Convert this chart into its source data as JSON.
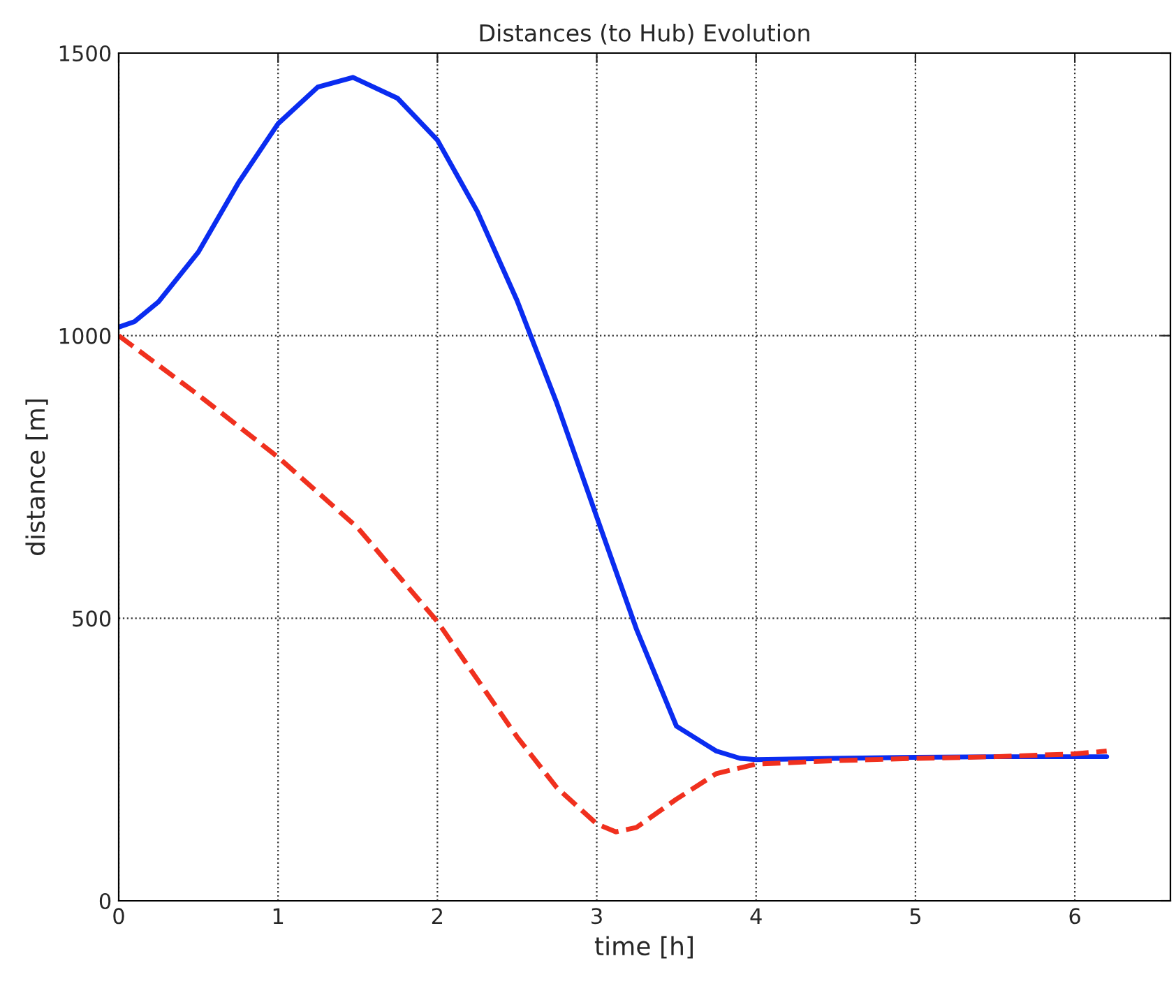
{
  "chart_data": {
    "type": "line",
    "title": "Distances (to Hub) Evolution",
    "xlabel": "time [h]",
    "ylabel": "distance [m]",
    "xlim": [
      0,
      6.6
    ],
    "ylim": [
      0,
      1500
    ],
    "xticks": [
      0,
      1,
      2,
      3,
      4,
      5,
      6
    ],
    "yticks": [
      0,
      500,
      1000,
      1500
    ],
    "grid": true,
    "legend": false,
    "marker": "none",
    "series": [
      {
        "color": "#0a2cf0",
        "line_style": "solid",
        "x": [
          0,
          0.1,
          0.25,
          0.5,
          0.75,
          1,
          1.25,
          1.47,
          1.75,
          2,
          2.25,
          2.5,
          2.75,
          3,
          3.25,
          3.5,
          3.75,
          3.9,
          4,
          4.5,
          5,
          5.5,
          6,
          6.2
        ],
        "values": [
          1015,
          1025,
          1060,
          1148,
          1270,
          1375,
          1440,
          1457,
          1420,
          1346,
          1220,
          1062,
          880,
          679,
          480,
          309,
          265,
          252,
          250,
          252,
          254,
          255,
          255,
          255
        ]
      },
      {
        "color": "#f0301e",
        "line_style": "dashed",
        "x": [
          0,
          0.5,
          1,
          1.5,
          2,
          2.5,
          2.75,
          3,
          3.12,
          3.25,
          3.5,
          3.75,
          4,
          4.5,
          5,
          5.5,
          6,
          6.2
        ],
        "values": [
          1000,
          895,
          785,
          660,
          494,
          290,
          200,
          136,
          122,
          130,
          180,
          225,
          242,
          248,
          252,
          255,
          260,
          265
        ]
      }
    ]
  }
}
